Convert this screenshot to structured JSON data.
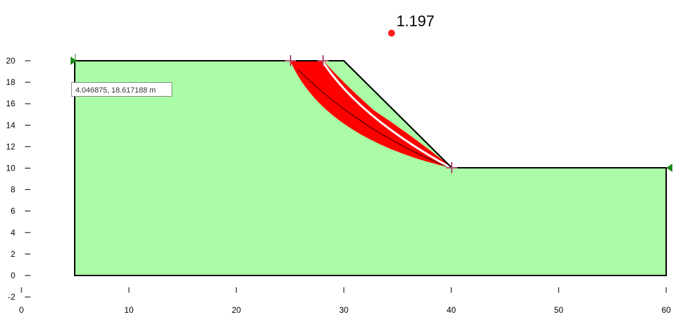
{
  "fos_label": "1.197",
  "tooltip": "4.046875, 18.617188 m",
  "xticks": [
    0,
    10,
    20,
    30,
    40,
    50,
    60
  ],
  "yticks": [
    -2,
    0,
    2,
    4,
    6,
    8,
    10,
    12,
    14,
    16,
    18,
    20
  ]
}
